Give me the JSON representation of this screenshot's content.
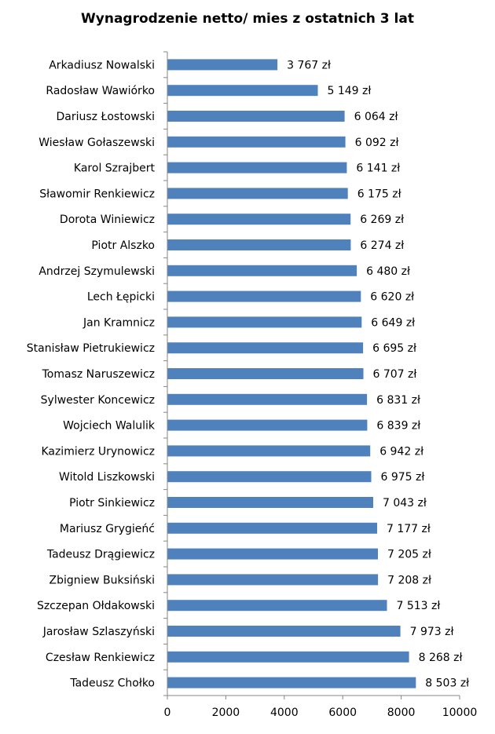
{
  "chart_data": {
    "type": "bar",
    "orientation": "horizontal",
    "title": "Wynagrodzenie netto/ mies z ostatnich 3 lat",
    "xlabel": "",
    "ylabel": "",
    "xlim": [
      0,
      10000
    ],
    "xticks": [
      "0",
      "2000",
      "4000",
      "6000",
      "8000",
      "10000"
    ],
    "grid": false,
    "bar_color": "#4F81BD",
    "categories": [
      "Arkadiusz Nowalski",
      "Radosław Wawiórko",
      "Dariusz Łostowski",
      "Wiesław Gołaszewski",
      "Karol Szrajbert",
      "Sławomir Renkiewicz",
      "Dorota Winiewicz",
      "Piotr Alszko",
      "Andrzej Szymulewski",
      "Lech Łępicki",
      "Jan Kramnicz",
      "Stanisław Pietrukiewicz",
      "Tomasz Naruszewicz",
      "Sylwester Koncewicz",
      "Wojciech Walulik",
      "Kazimierz Urynowicz",
      "Witold Liszkowski",
      "Piotr Sinkiewicz",
      "Mariusz Grygieńć",
      "Tadeusz Drągiewicz",
      "Zbigniew Buksiński",
      "Szczepan Ołdakowski",
      "Jarosław Szlaszyński",
      "Czesław Renkiewicz",
      "Tadeusz Chołko"
    ],
    "values": [
      3767,
      5149,
      6064,
      6092,
      6141,
      6175,
      6269,
      6274,
      6480,
      6620,
      6649,
      6695,
      6707,
      6831,
      6839,
      6942,
      6975,
      7043,
      7177,
      7205,
      7208,
      7513,
      7973,
      8268,
      8503
    ],
    "value_labels": [
      "3 767 zł",
      "5 149 zł",
      "6 064 zł",
      "6 092 zł",
      "6 141 zł",
      "6 175 zł",
      "6 269 zł",
      "6 274 zł",
      "6 480 zł",
      "6 620 zł",
      "6 649 zł",
      "6 695 zł",
      "6 707 zł",
      "6 831 zł",
      "6 839 zł",
      "6 942 zł",
      "6 975 zł",
      "7 043 zł",
      "7 177 zł",
      "7 205 zł",
      "7 208 zł",
      "7 513 zł",
      "7 973 zł",
      "8 268 zł",
      "8 503 zł"
    ]
  }
}
